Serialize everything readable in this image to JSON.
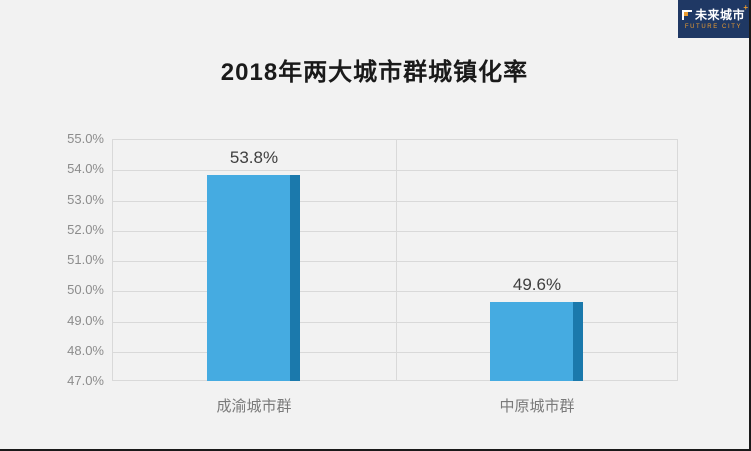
{
  "page": {
    "background": "#f2f2f2",
    "edge_border_color": "#1a1a1a"
  },
  "logo": {
    "cn": "未来城市",
    "en": "FUTURE CITY",
    "plus": "+",
    "bg": "#1f3864",
    "accent": "#eb9c30",
    "text_color": "#ffffff"
  },
  "chart_data": {
    "type": "bar",
    "title": "2018年两大城市群城镇化率",
    "categories": [
      "成渝城市群",
      "中原城市群"
    ],
    "values": [
      53.8,
      49.6
    ],
    "value_labels": [
      "53.8%",
      "49.6%"
    ],
    "xlabel": "",
    "ylabel": "",
    "ylim": [
      47.0,
      55.0
    ],
    "ytick_step": 1.0,
    "ytick_labels": [
      "55.0%",
      "54.0%",
      "53.0%",
      "52.0%",
      "51.0%",
      "50.0%",
      "49.0%",
      "48.0%",
      "47.0%"
    ],
    "grid": true,
    "legend": false,
    "colors": {
      "bar": "#45abe1",
      "bar_side": "#1b79ac",
      "grid": "#d9d9d9",
      "tick_text": "#8c8c8c",
      "category_text": "#7a7a7a",
      "value_text": "#3f3f3f",
      "title_text": "#1a1a1a"
    }
  }
}
